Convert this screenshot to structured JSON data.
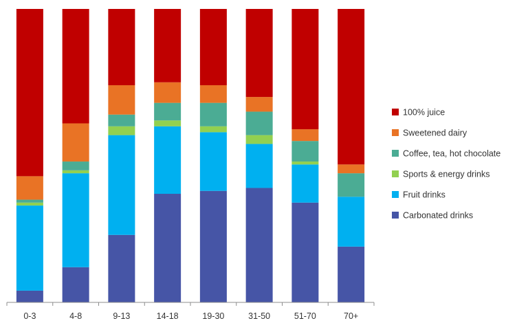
{
  "chart_data": {
    "type": "bar",
    "stacked": true,
    "percent_stacked": true,
    "ylim": [
      0,
      100
    ],
    "legend_position": "right",
    "grid": false,
    "categories": [
      "0-3",
      "4-8",
      "9-13",
      "14-18",
      "19-30",
      "31-50",
      "51-70",
      "70+"
    ],
    "series": [
      {
        "name": "Carbonated drinks",
        "color": "#4655A6",
        "values": [
          4,
          12,
          23,
          37,
          38,
          39,
          34,
          19
        ]
      },
      {
        "name": "Fruit drinks",
        "color": "#00B0F0",
        "values": [
          29,
          32,
          34,
          23,
          20,
          15,
          13,
          17
        ]
      },
      {
        "name": "Sports & energy drinks",
        "color": "#92D050",
        "values": [
          1,
          1,
          3,
          2,
          2,
          3,
          1,
          0
        ]
      },
      {
        "name": "Coffee, tea, hot chocolate",
        "color": "#4BAC94",
        "values": [
          1,
          3,
          4,
          6,
          8,
          8,
          7,
          8
        ]
      },
      {
        "name": "Sweetened dairy",
        "color": "#E97325",
        "values": [
          8,
          13,
          10,
          7,
          6,
          5,
          4,
          3
        ]
      },
      {
        "name": "100% juice",
        "color": "#C00000",
        "values": [
          57,
          39,
          26,
          25,
          26,
          30,
          41,
          53
        ]
      }
    ]
  }
}
